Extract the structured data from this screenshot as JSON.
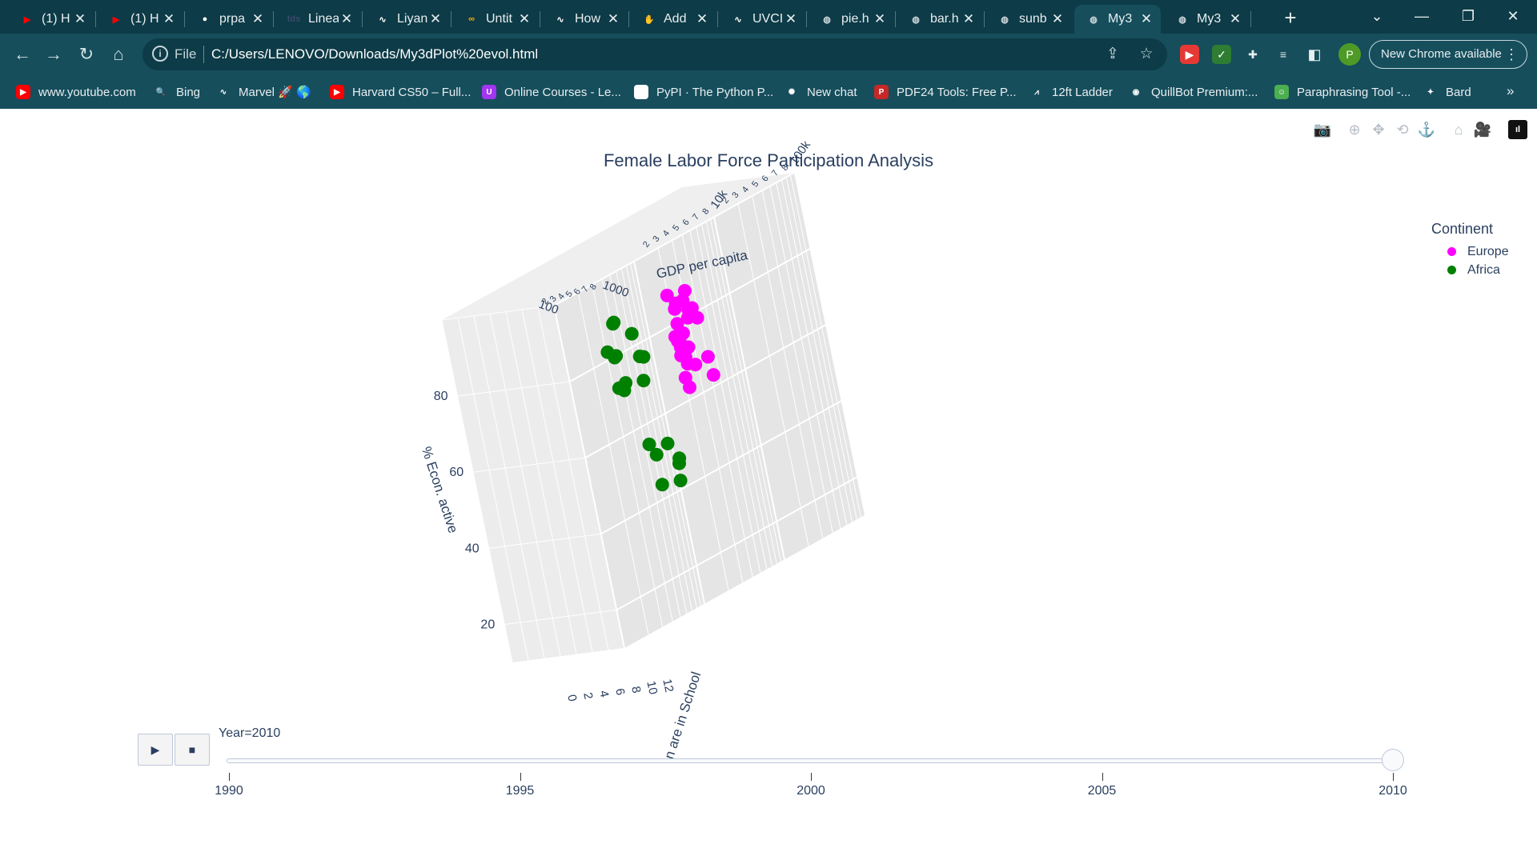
{
  "browser": {
    "tabs": [
      {
        "title": "(1) H",
        "icon": "youtube-icon",
        "color": "#ff0000",
        "glyph": "▶"
      },
      {
        "title": "(1) H",
        "icon": "youtube-icon",
        "color": "#ff0000",
        "glyph": "▶"
      },
      {
        "title": "prpa",
        "icon": "github-icon",
        "color": "#ffffff",
        "glyph": "●"
      },
      {
        "title": "Linea",
        "icon": "tds-icon",
        "color": "#3b4a6b",
        "glyph": "tds"
      },
      {
        "title": "Liyan",
        "icon": "wave-icon",
        "color": "#ffffff",
        "glyph": "∿"
      },
      {
        "title": "Untit",
        "icon": "colab-icon",
        "color": "#f9ab00",
        "glyph": "∞"
      },
      {
        "title": "How",
        "icon": "wave-icon",
        "color": "#ffffff",
        "glyph": "∿"
      },
      {
        "title": "Add",
        "icon": "hand-icon",
        "color": "#d9822b",
        "glyph": "✋"
      },
      {
        "title": "UVCI",
        "icon": "wave-icon",
        "color": "#ffffff",
        "glyph": "∿"
      },
      {
        "title": "pie.h",
        "icon": "globe-icon",
        "color": "#cfd8dc",
        "glyph": "◍"
      },
      {
        "title": "bar.h",
        "icon": "globe-icon",
        "color": "#cfd8dc",
        "glyph": "◍"
      },
      {
        "title": "sunb",
        "icon": "globe-icon",
        "color": "#cfd8dc",
        "glyph": "◍"
      },
      {
        "title": "My3",
        "icon": "globe-icon",
        "color": "#cfd8dc",
        "glyph": "◍",
        "active": true
      },
      {
        "title": "My3",
        "icon": "globe-icon",
        "color": "#cfd8dc",
        "glyph": "◍"
      }
    ],
    "new_tab": "+",
    "window": {
      "list": "⌄",
      "minimize": "—",
      "restore": "❐",
      "close": "✕"
    },
    "nav": {
      "back": "←",
      "forward": "→",
      "reload": "↻",
      "home": "⌂"
    },
    "address": {
      "scheme_label": "File",
      "url": "C:/Users/LENOVO/Downloads/My3dPlot%20evol.html"
    },
    "profile_initial": "P",
    "update_button": "New Chrome available",
    "bookmarks": [
      {
        "label": "www.youtube.com",
        "icon": "youtube-icon",
        "color": "#ff0000",
        "glyph": "▶"
      },
      {
        "label": "Bing",
        "icon": "search-icon",
        "color": "#164e5c",
        "glyph": "🔍"
      },
      {
        "label": "Marvel 🚀 🌎",
        "icon": "wave-icon",
        "color": "#164e5c",
        "glyph": "∿"
      },
      {
        "label": "Harvard CS50 – Full...",
        "icon": "youtube-icon",
        "color": "#ff0000",
        "glyph": "▶"
      },
      {
        "label": "Online Courses - Le...",
        "icon": "udemy-icon",
        "color": "#a435f0",
        "glyph": "U"
      },
      {
        "label": "PyPI · The Python P...",
        "icon": "cube-icon",
        "color": "#ffffff",
        "glyph": "▣"
      },
      {
        "label": "New chat",
        "icon": "openai-icon",
        "color": "#164e5c",
        "glyph": "✺"
      },
      {
        "label": "PDF24 Tools: Free P...",
        "icon": "pdf24-icon",
        "color": "#c62828",
        "glyph": "P"
      },
      {
        "label": "12ft Ladder",
        "icon": "ladder-icon",
        "color": "#164e5c",
        "glyph": "⩘"
      },
      {
        "label": "QuillBot Premium:...",
        "icon": "quillbot-icon",
        "color": "#164e5c",
        "glyph": "◉"
      },
      {
        "label": "Paraphrasing Tool -...",
        "icon": "robot-icon",
        "color": "#4caf50",
        "glyph": "☺"
      },
      {
        "label": "Bard",
        "icon": "bard-icon",
        "color": "#164e5c",
        "glyph": "✦"
      }
    ],
    "bookmarks_more": "»"
  },
  "plot": {
    "modebar": [
      {
        "name": "camera-icon",
        "glyph": "📷"
      },
      {
        "name": "zoom-icon",
        "glyph": "⊕"
      },
      {
        "name": "pan-icon",
        "glyph": "✥"
      },
      {
        "name": "orbit-icon",
        "glyph": "⟲"
      },
      {
        "name": "turntable-icon",
        "glyph": "⚓"
      },
      {
        "name": "reset-camera-icon",
        "glyph": "⌂"
      },
      {
        "name": "last-view-icon",
        "glyph": "🎥"
      },
      {
        "name": "plotly-logo-icon",
        "glyph": "ıl"
      }
    ],
    "legend": {
      "title": "Continent",
      "items": [
        {
          "name": "Europe",
          "color": "#ff00ff"
        },
        {
          "name": "Africa",
          "color": "#008000"
        }
      ]
    },
    "slider": {
      "play_label": "▶",
      "stop_label": "■",
      "current_label": "Year=2010",
      "min": 1990,
      "max": 2010,
      "value": 2010,
      "ticks": [
        "1990",
        "1995",
        "2000",
        "2005",
        "2010"
      ]
    }
  },
  "chart_data": {
    "type": "scatter3d",
    "title": "Female Labor Force Participation Analysis",
    "axes": {
      "x": {
        "label": "GDP per capita",
        "scale": "log",
        "tick_labels_back": [
          "100",
          "2",
          "3",
          "4",
          "5",
          "6",
          "7",
          "8",
          "1000"
        ],
        "tick_labels": [
          "2",
          "3",
          "4",
          "5",
          "6",
          "7",
          "8",
          "10k",
          "2",
          "3",
          "4",
          "5",
          "6",
          "7",
          "8",
          "100k"
        ]
      },
      "y": {
        "label": "% Econ. active",
        "tick_labels": [
          "20",
          "40",
          "60",
          "80"
        ]
      },
      "z": {
        "label": "Years women are in School",
        "visible_label": "n are in School",
        "tick_labels": [
          "0",
          "2",
          "4",
          "6",
          "8",
          "10",
          "12"
        ]
      }
    },
    "series": [
      {
        "name": "Europe",
        "color": "#ff00ff",
        "points_screen_note": "projected",
        "x": [
          25000,
          30000,
          35000,
          40000,
          20000,
          28000,
          32000,
          45000,
          22000,
          27000,
          38000,
          50000,
          33000,
          24000,
          26000,
          36000,
          60000,
          42000,
          18000,
          21000,
          29000,
          31000,
          44000,
          55000
        ],
        "y": [
          78,
          75,
          73,
          72,
          68,
          70,
          65,
          74,
          66,
          64,
          70,
          76,
          63,
          60,
          62,
          58,
          68,
          59,
          55,
          57,
          61,
          67,
          54,
          71
        ],
        "z": [
          12,
          12,
          13,
          12,
          11,
          12,
          13,
          13,
          11,
          12,
          12,
          13,
          12,
          11,
          12,
          12,
          13,
          11,
          10,
          11,
          12,
          12,
          11,
          13
        ]
      },
      {
        "name": "Africa",
        "color": "#008000",
        "x": [
          1000,
          1200,
          1500,
          900,
          1100,
          1300,
          1800,
          2500,
          800,
          1000,
          1400,
          3000,
          2000,
          4000,
          3500,
          5000,
          6000,
          2800,
          7000
        ],
        "y": [
          85,
          84,
          80,
          78,
          76,
          75,
          73,
          72,
          70,
          68,
          66,
          65,
          50,
          47,
          45,
          42,
          40,
          38,
          35
        ],
        "z": [
          4,
          5,
          4,
          5,
          5,
          6,
          4,
          6,
          3,
          5,
          6,
          7,
          6,
          7,
          8,
          7,
          8,
          7,
          9
        ]
      }
    ]
  }
}
